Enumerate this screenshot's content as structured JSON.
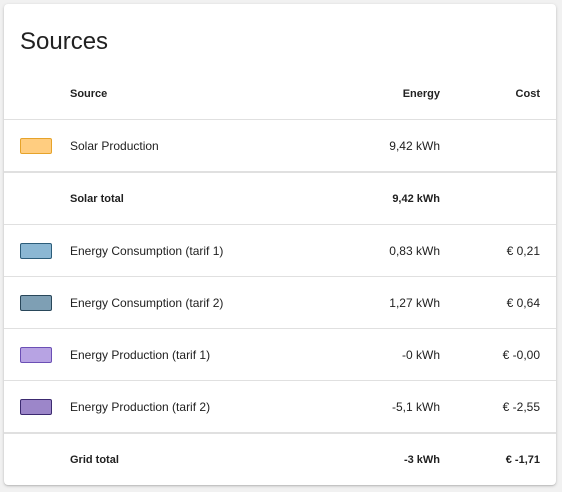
{
  "card": {
    "title": "Sources"
  },
  "table": {
    "headers": {
      "source": "Source",
      "energy": "Energy",
      "cost": "Cost"
    },
    "rows": [
      {
        "source": "Solar Production",
        "energy": "9,42 kWh",
        "cost": "",
        "swatch_fill": "#ffcd80",
        "swatch_border": "#e6a32a"
      },
      {
        "source": "Solar total",
        "energy": "9,42 kWh",
        "cost": ""
      },
      {
        "source": "Energy Consumption (tarif 1)",
        "energy": "0,83 kWh",
        "cost": "€ 0,21",
        "swatch_fill": "#8bb7d3",
        "swatch_border": "#2c5d7a"
      },
      {
        "source": "Energy Consumption (tarif 2)",
        "energy": "1,27 kWh",
        "cost": "€ 0,64",
        "swatch_fill": "#7e9fb4",
        "swatch_border": "#29475a"
      },
      {
        "source": "Energy Production (tarif 1)",
        "energy": "-0 kWh",
        "cost": "€ -0,00",
        "swatch_fill": "#b7a3e3",
        "swatch_border": "#6b4fb5"
      },
      {
        "source": "Energy Production (tarif 2)",
        "energy": "-5,1 kWh",
        "cost": "€ -2,55",
        "swatch_fill": "#9c86c9",
        "swatch_border": "#3c2a70"
      },
      {
        "source": "Grid total",
        "energy": "-3 kWh",
        "cost": "€ -1,71"
      }
    ]
  }
}
